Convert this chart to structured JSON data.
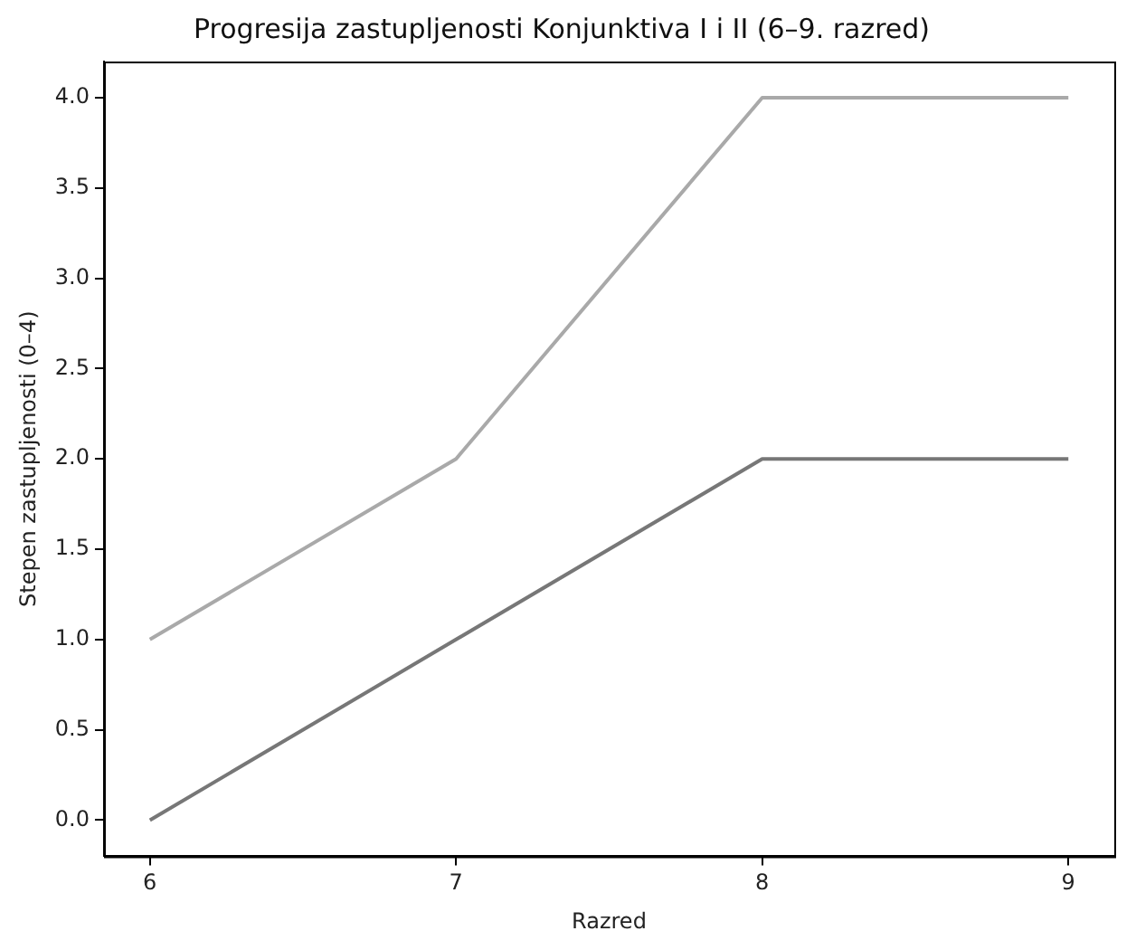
{
  "chart_data": {
    "type": "line",
    "title": "Progresija zastupljenosti Konjunktiva I i II (6–9. razred)",
    "xlabel": "Razred",
    "ylabel": "Stepen zastupljenosti (0–4)",
    "x": [
      6,
      7,
      8,
      9
    ],
    "series": [
      {
        "color": "#a9a9a9",
        "values": [
          1,
          2,
          4,
          4
        ]
      },
      {
        "color": "#777777",
        "values": [
          0,
          1,
          2,
          2
        ]
      }
    ],
    "xlim": [
      5.85,
      9.15
    ],
    "xticks": [
      6,
      7,
      8,
      9
    ],
    "ylim": [
      -0.2,
      4.2
    ],
    "yticks": [
      {
        "value": 0,
        "label": "0.0"
      },
      {
        "value": 0.5,
        "label": "0.5"
      },
      {
        "value": 1,
        "label": "1.0"
      },
      {
        "value": 1.5,
        "label": "1.5"
      },
      {
        "value": 2,
        "label": "2.0"
      },
      {
        "value": 2.5,
        "label": "2.5"
      },
      {
        "value": 3,
        "label": "3.0"
      },
      {
        "value": 3.5,
        "label": "3.5"
      },
      {
        "value": 4,
        "label": "4.0"
      }
    ],
    "grid": false,
    "legend": false,
    "marker": "none",
    "line_style": "solid"
  }
}
